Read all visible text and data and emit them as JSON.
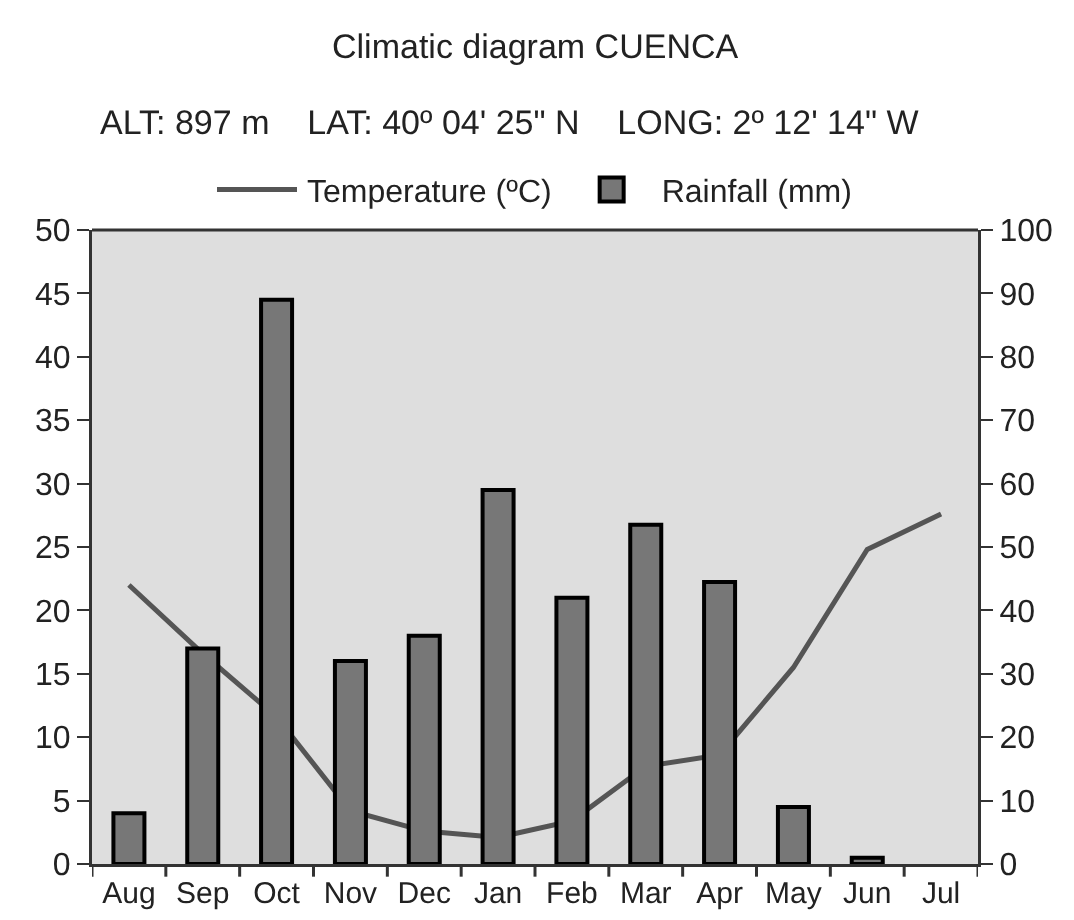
{
  "chart_data": {
    "type": "bar",
    "title": "Climatic diagram CUENCA",
    "subtitle": "ALT: 897 m    LAT: 40º 04' 25\" N    LONG: 2º 12' 14\" W",
    "categories": [
      "Aug",
      "Sep",
      "Oct",
      "Nov",
      "Dec",
      "Jan",
      "Feb",
      "Mar",
      "Apr",
      "May",
      "Jun",
      "Jul"
    ],
    "series": [
      {
        "name": "Temperature (ºC)",
        "type": "line",
        "color": "#555555",
        "values": [
          22,
          16.6,
          11.6,
          4.2,
          2.6,
          2.1,
          3.4,
          7.7,
          8.6,
          15.5,
          24.8,
          27.6
        ]
      },
      {
        "name": "Rainfall (mm)",
        "axis": "y2",
        "color": "#777777",
        "values": [
          8,
          34,
          89,
          32,
          36,
          59,
          42,
          53.5,
          44.5,
          9,
          1,
          0
        ]
      }
    ],
    "ylim": [
      0,
      50
    ],
    "yticks": [
      0,
      5,
      10,
      15,
      20,
      25,
      30,
      35,
      40,
      45,
      50
    ],
    "y2lim": [
      0,
      100
    ],
    "y2ticks": [
      0,
      10,
      20,
      30,
      40,
      50,
      60,
      70,
      80,
      90,
      100
    ],
    "legend": "top",
    "marker": "none"
  }
}
